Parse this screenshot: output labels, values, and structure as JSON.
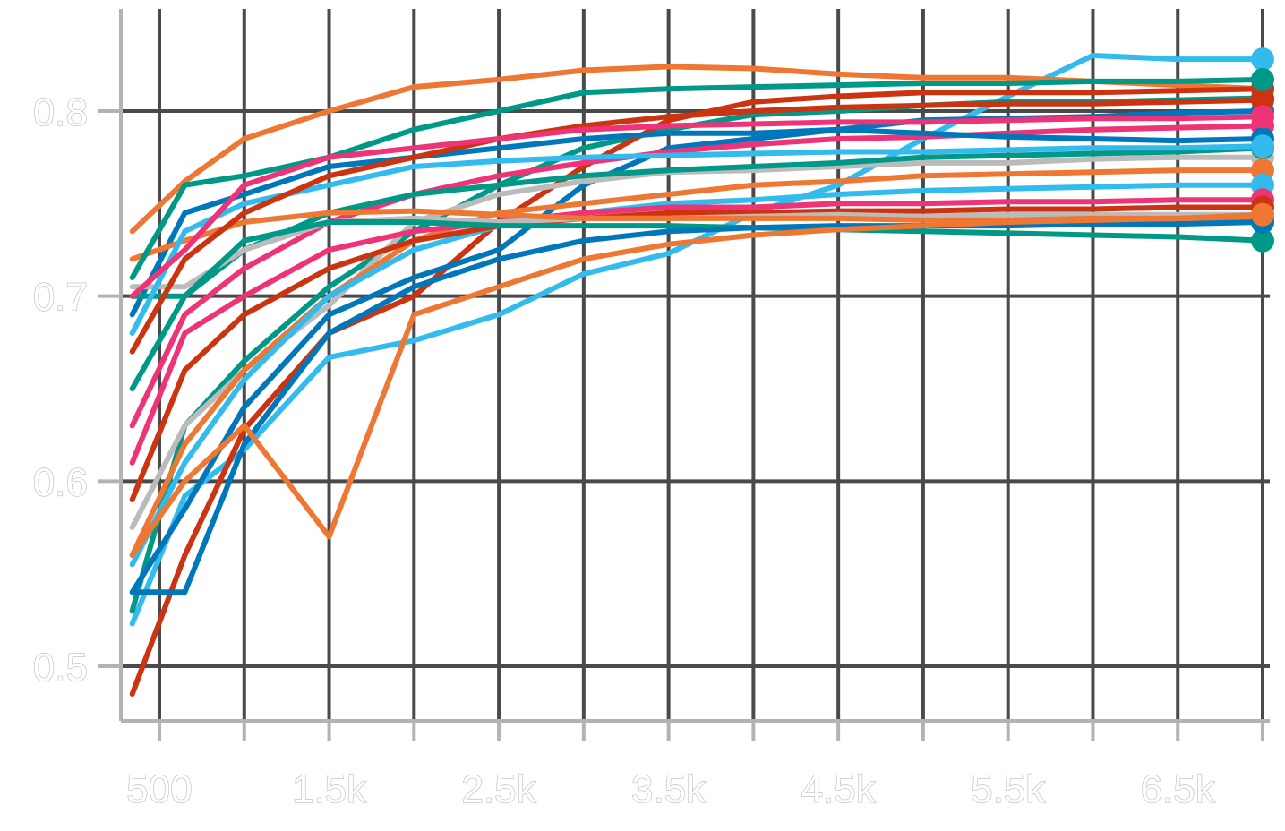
{
  "chart_data": {
    "type": "line",
    "title": "",
    "xlabel": "",
    "ylabel": "",
    "xlim": [
      250,
      7000
    ],
    "ylim": [
      0.467,
      0.853
    ],
    "x_ticks": [
      500,
      1000,
      1500,
      2000,
      2500,
      3000,
      3500,
      4000,
      4500,
      5000,
      5500,
      6000,
      6500,
      7000
    ],
    "x_tick_labels": [
      {
        "value": 500,
        "label": "500"
      },
      {
        "value": 1500,
        "label": "1.5k"
      },
      {
        "value": 2500,
        "label": "2.5k"
      },
      {
        "value": 3500,
        "label": "3.5k"
      },
      {
        "value": 4500,
        "label": "4.5k"
      },
      {
        "value": 5500,
        "label": "5.5k"
      },
      {
        "value": 6500,
        "label": "6.5k"
      }
    ],
    "y_ticks": [
      {
        "value": 0.5,
        "label": "0.5"
      },
      {
        "value": 0.6,
        "label": "0.6"
      },
      {
        "value": 0.7,
        "label": "0.7"
      },
      {
        "value": 0.8,
        "label": "0.8"
      }
    ],
    "grid": true,
    "legend": "none",
    "x": [
      340,
      650,
      1000,
      1500,
      2000,
      2500,
      3000,
      3500,
      4000,
      4500,
      5000,
      5500,
      6000,
      6500,
      7000
    ],
    "series": [
      {
        "color": "#33bbee",
        "values": [
          0.523,
          0.592,
          0.617,
          0.667,
          0.676,
          0.69,
          0.712,
          0.723,
          0.745,
          0.76,
          0.785,
          0.808,
          0.83,
          0.828,
          0.828
        ]
      },
      {
        "color": "#ee7733",
        "values": [
          0.735,
          0.762,
          0.785,
          0.8,
          0.813,
          0.817,
          0.822,
          0.824,
          0.823,
          0.82,
          0.818,
          0.818,
          0.816,
          0.814,
          0.812
        ]
      },
      {
        "color": "#009988",
        "values": [
          0.53,
          0.63,
          0.665,
          0.705,
          0.735,
          0.76,
          0.78,
          0.79,
          0.798,
          0.8,
          0.803,
          0.805,
          0.805,
          0.806,
          0.807
        ]
      },
      {
        "color": "#cc3311",
        "values": [
          0.485,
          0.56,
          0.628,
          0.68,
          0.7,
          0.74,
          0.77,
          0.795,
          0.805,
          0.808,
          0.81,
          0.81,
          0.81,
          0.811,
          0.812
        ]
      },
      {
        "color": "#0077bb",
        "values": [
          0.54,
          0.585,
          0.64,
          0.69,
          0.71,
          0.725,
          0.76,
          0.78,
          0.785,
          0.79,
          0.795,
          0.796,
          0.797,
          0.799,
          0.8
        ]
      },
      {
        "color": "#ee3377",
        "values": [
          0.63,
          0.69,
          0.715,
          0.74,
          0.755,
          0.765,
          0.772,
          0.778,
          0.782,
          0.785,
          0.786,
          0.788,
          0.79,
          0.791,
          0.792
        ]
      },
      {
        "color": "#bbbbbb",
        "values": [
          0.575,
          0.63,
          0.66,
          0.695,
          0.74,
          0.755,
          0.762,
          0.767,
          0.768,
          0.77,
          0.772,
          0.772,
          0.774,
          0.775,
          0.775
        ]
      },
      {
        "color": "#0077bb",
        "values": [
          0.69,
          0.745,
          0.755,
          0.77,
          0.775,
          0.78,
          0.785,
          0.788,
          0.788,
          0.79,
          0.788,
          0.786,
          0.785,
          0.784,
          0.785
        ]
      },
      {
        "color": "#009988",
        "values": [
          0.65,
          0.7,
          0.725,
          0.745,
          0.755,
          0.76,
          0.765,
          0.768,
          0.77,
          0.772,
          0.775,
          0.776,
          0.777,
          0.778,
          0.78
        ]
      },
      {
        "color": "#ee7733",
        "values": [
          0.56,
          0.62,
          0.66,
          0.7,
          0.73,
          0.745,
          0.75,
          0.755,
          0.76,
          0.762,
          0.765,
          0.766,
          0.767,
          0.768,
          0.768
        ]
      },
      {
        "color": "#33bbee",
        "values": [
          0.555,
          0.61,
          0.655,
          0.7,
          0.725,
          0.738,
          0.745,
          0.75,
          0.752,
          0.755,
          0.757,
          0.758,
          0.759,
          0.76,
          0.76
        ]
      },
      {
        "color": "#ee3377",
        "values": [
          0.61,
          0.68,
          0.7,
          0.725,
          0.735,
          0.74,
          0.745,
          0.748,
          0.748,
          0.75,
          0.75,
          0.751,
          0.751,
          0.752,
          0.752
        ]
      },
      {
        "color": "#cc3311",
        "values": [
          0.59,
          0.66,
          0.69,
          0.715,
          0.73,
          0.738,
          0.742,
          0.745,
          0.745,
          0.746,
          0.746,
          0.747,
          0.747,
          0.748,
          0.748
        ]
      },
      {
        "color": "#bbbbbb",
        "values": [
          0.705,
          0.705,
          0.725,
          0.74,
          0.742,
          0.74,
          0.742,
          0.742,
          0.743,
          0.744,
          0.743,
          0.744,
          0.744,
          0.744,
          0.744
        ]
      },
      {
        "color": "#ee7733",
        "values": [
          0.72,
          0.73,
          0.74,
          0.745,
          0.746,
          0.744,
          0.742,
          0.742,
          0.742,
          0.742,
          0.741,
          0.741,
          0.742,
          0.742,
          0.742
        ]
      },
      {
        "color": "#009988",
        "values": [
          0.7,
          0.7,
          0.73,
          0.74,
          0.74,
          0.738,
          0.738,
          0.738,
          0.737,
          0.736,
          0.735,
          0.734,
          0.733,
          0.732,
          0.73
        ]
      },
      {
        "color": "#0077bb",
        "values": [
          0.54,
          0.54,
          0.62,
          0.68,
          0.705,
          0.72,
          0.73,
          0.735,
          0.737,
          0.738,
          0.738,
          0.738,
          0.739,
          0.739,
          0.74
        ]
      },
      {
        "color": "#33bbee",
        "values": [
          0.68,
          0.735,
          0.75,
          0.76,
          0.77,
          0.773,
          0.775,
          0.776,
          0.777,
          0.778,
          0.778,
          0.779,
          0.78,
          0.78,
          0.781
        ]
      },
      {
        "color": "#ee7733",
        "values": [
          0.56,
          0.6,
          0.63,
          0.57,
          0.69,
          0.705,
          0.72,
          0.728,
          0.733,
          0.736,
          0.738,
          0.74,
          0.741,
          0.742,
          0.744
        ]
      },
      {
        "color": "#cc3311",
        "values": [
          0.67,
          0.72,
          0.745,
          0.765,
          0.775,
          0.785,
          0.792,
          0.797,
          0.8,
          0.802,
          0.803,
          0.804,
          0.804,
          0.805,
          0.806
        ]
      },
      {
        "color": "#009988",
        "values": [
          0.71,
          0.76,
          0.765,
          0.775,
          0.79,
          0.8,
          0.81,
          0.812,
          0.813,
          0.814,
          0.815,
          0.815,
          0.816,
          0.816,
          0.817
        ]
      },
      {
        "color": "#ee3377",
        "values": [
          0.7,
          0.725,
          0.76,
          0.775,
          0.78,
          0.785,
          0.79,
          0.792,
          0.793,
          0.794,
          0.794,
          0.795,
          0.796,
          0.796,
          0.797
        ]
      }
    ]
  }
}
